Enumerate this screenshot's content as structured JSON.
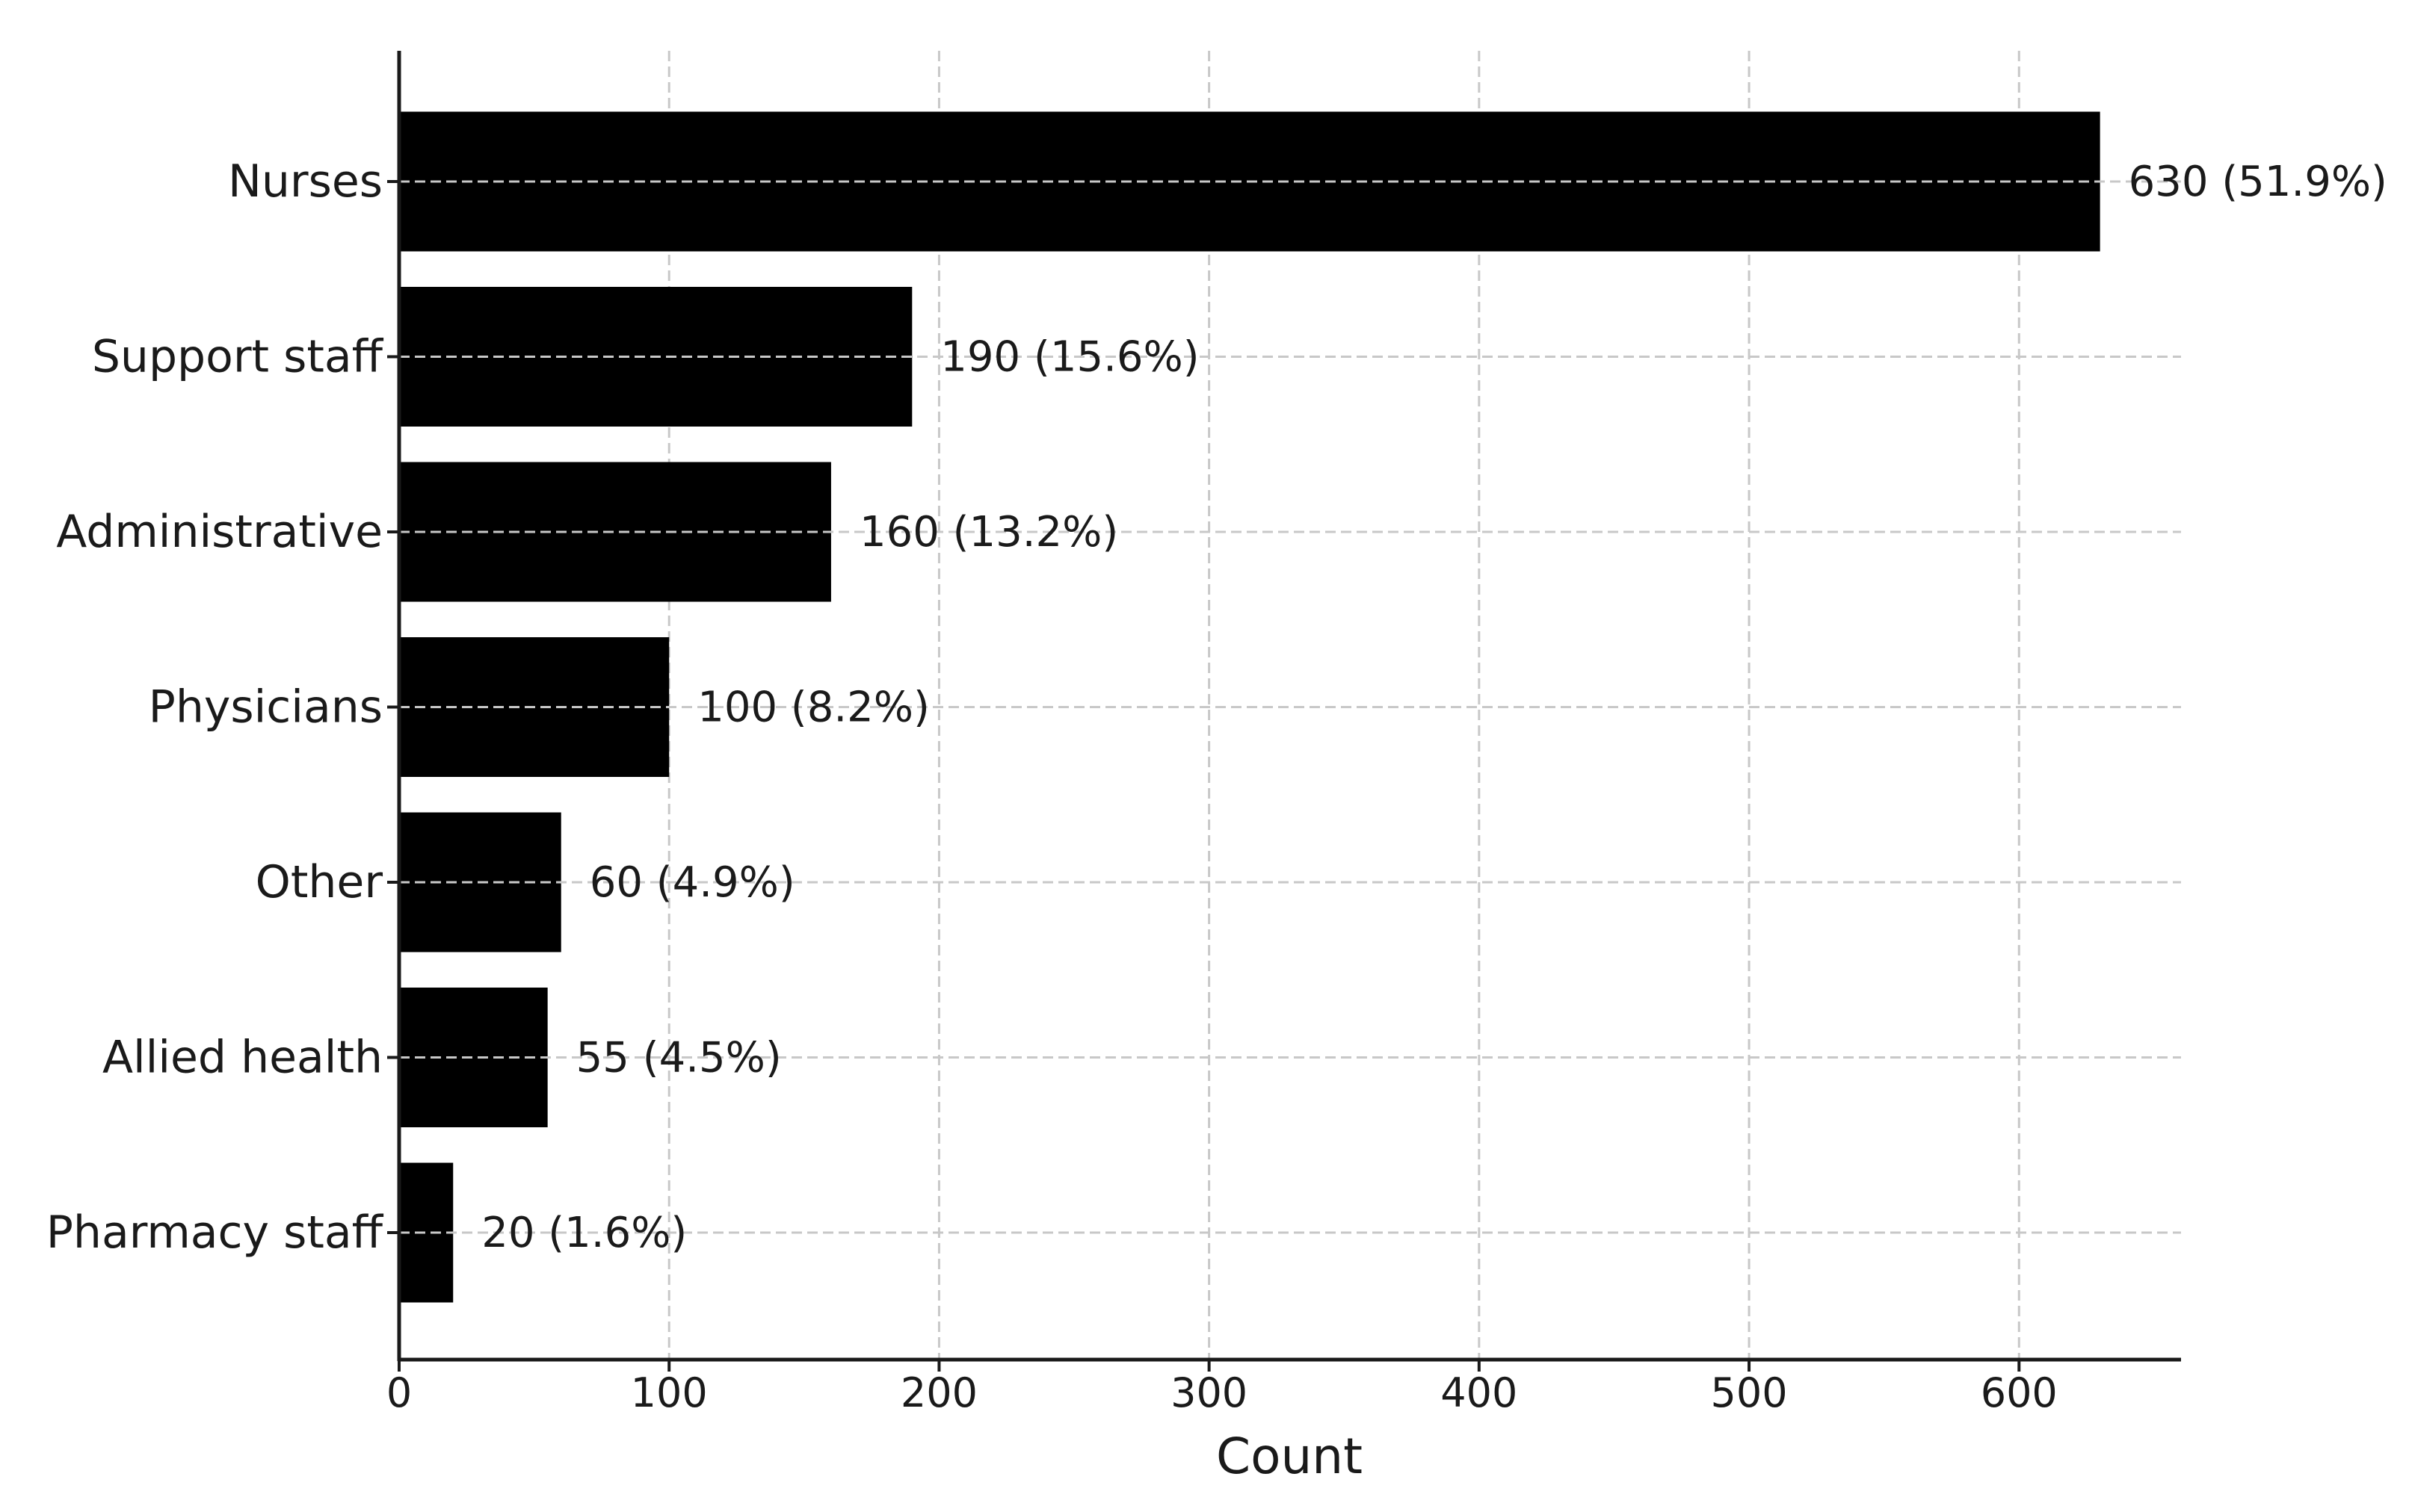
{
  "chart_data": {
    "type": "bar",
    "orientation": "horizontal",
    "title": "",
    "xlabel": "Count",
    "ylabel": "",
    "xlim": [
      0,
      660
    ],
    "x_ticks": [
      0,
      100,
      200,
      300,
      400,
      500,
      600
    ],
    "grid": true,
    "grid_style": "dashed",
    "bar_color": "#000000",
    "categories": [
      "Nurses",
      "Support staff",
      "Administrative",
      "Physicians",
      "Other",
      "Allied health",
      "Pharmacy staff"
    ],
    "values": [
      630,
      190,
      160,
      100,
      60,
      55,
      20
    ],
    "data_labels": [
      "630 (51.9%)",
      "190 (15.6%)",
      "160 (13.2%)",
      "100 (8.2%)",
      "60 (4.9%)",
      "55 (4.5%)",
      "20 (1.6%)"
    ]
  }
}
